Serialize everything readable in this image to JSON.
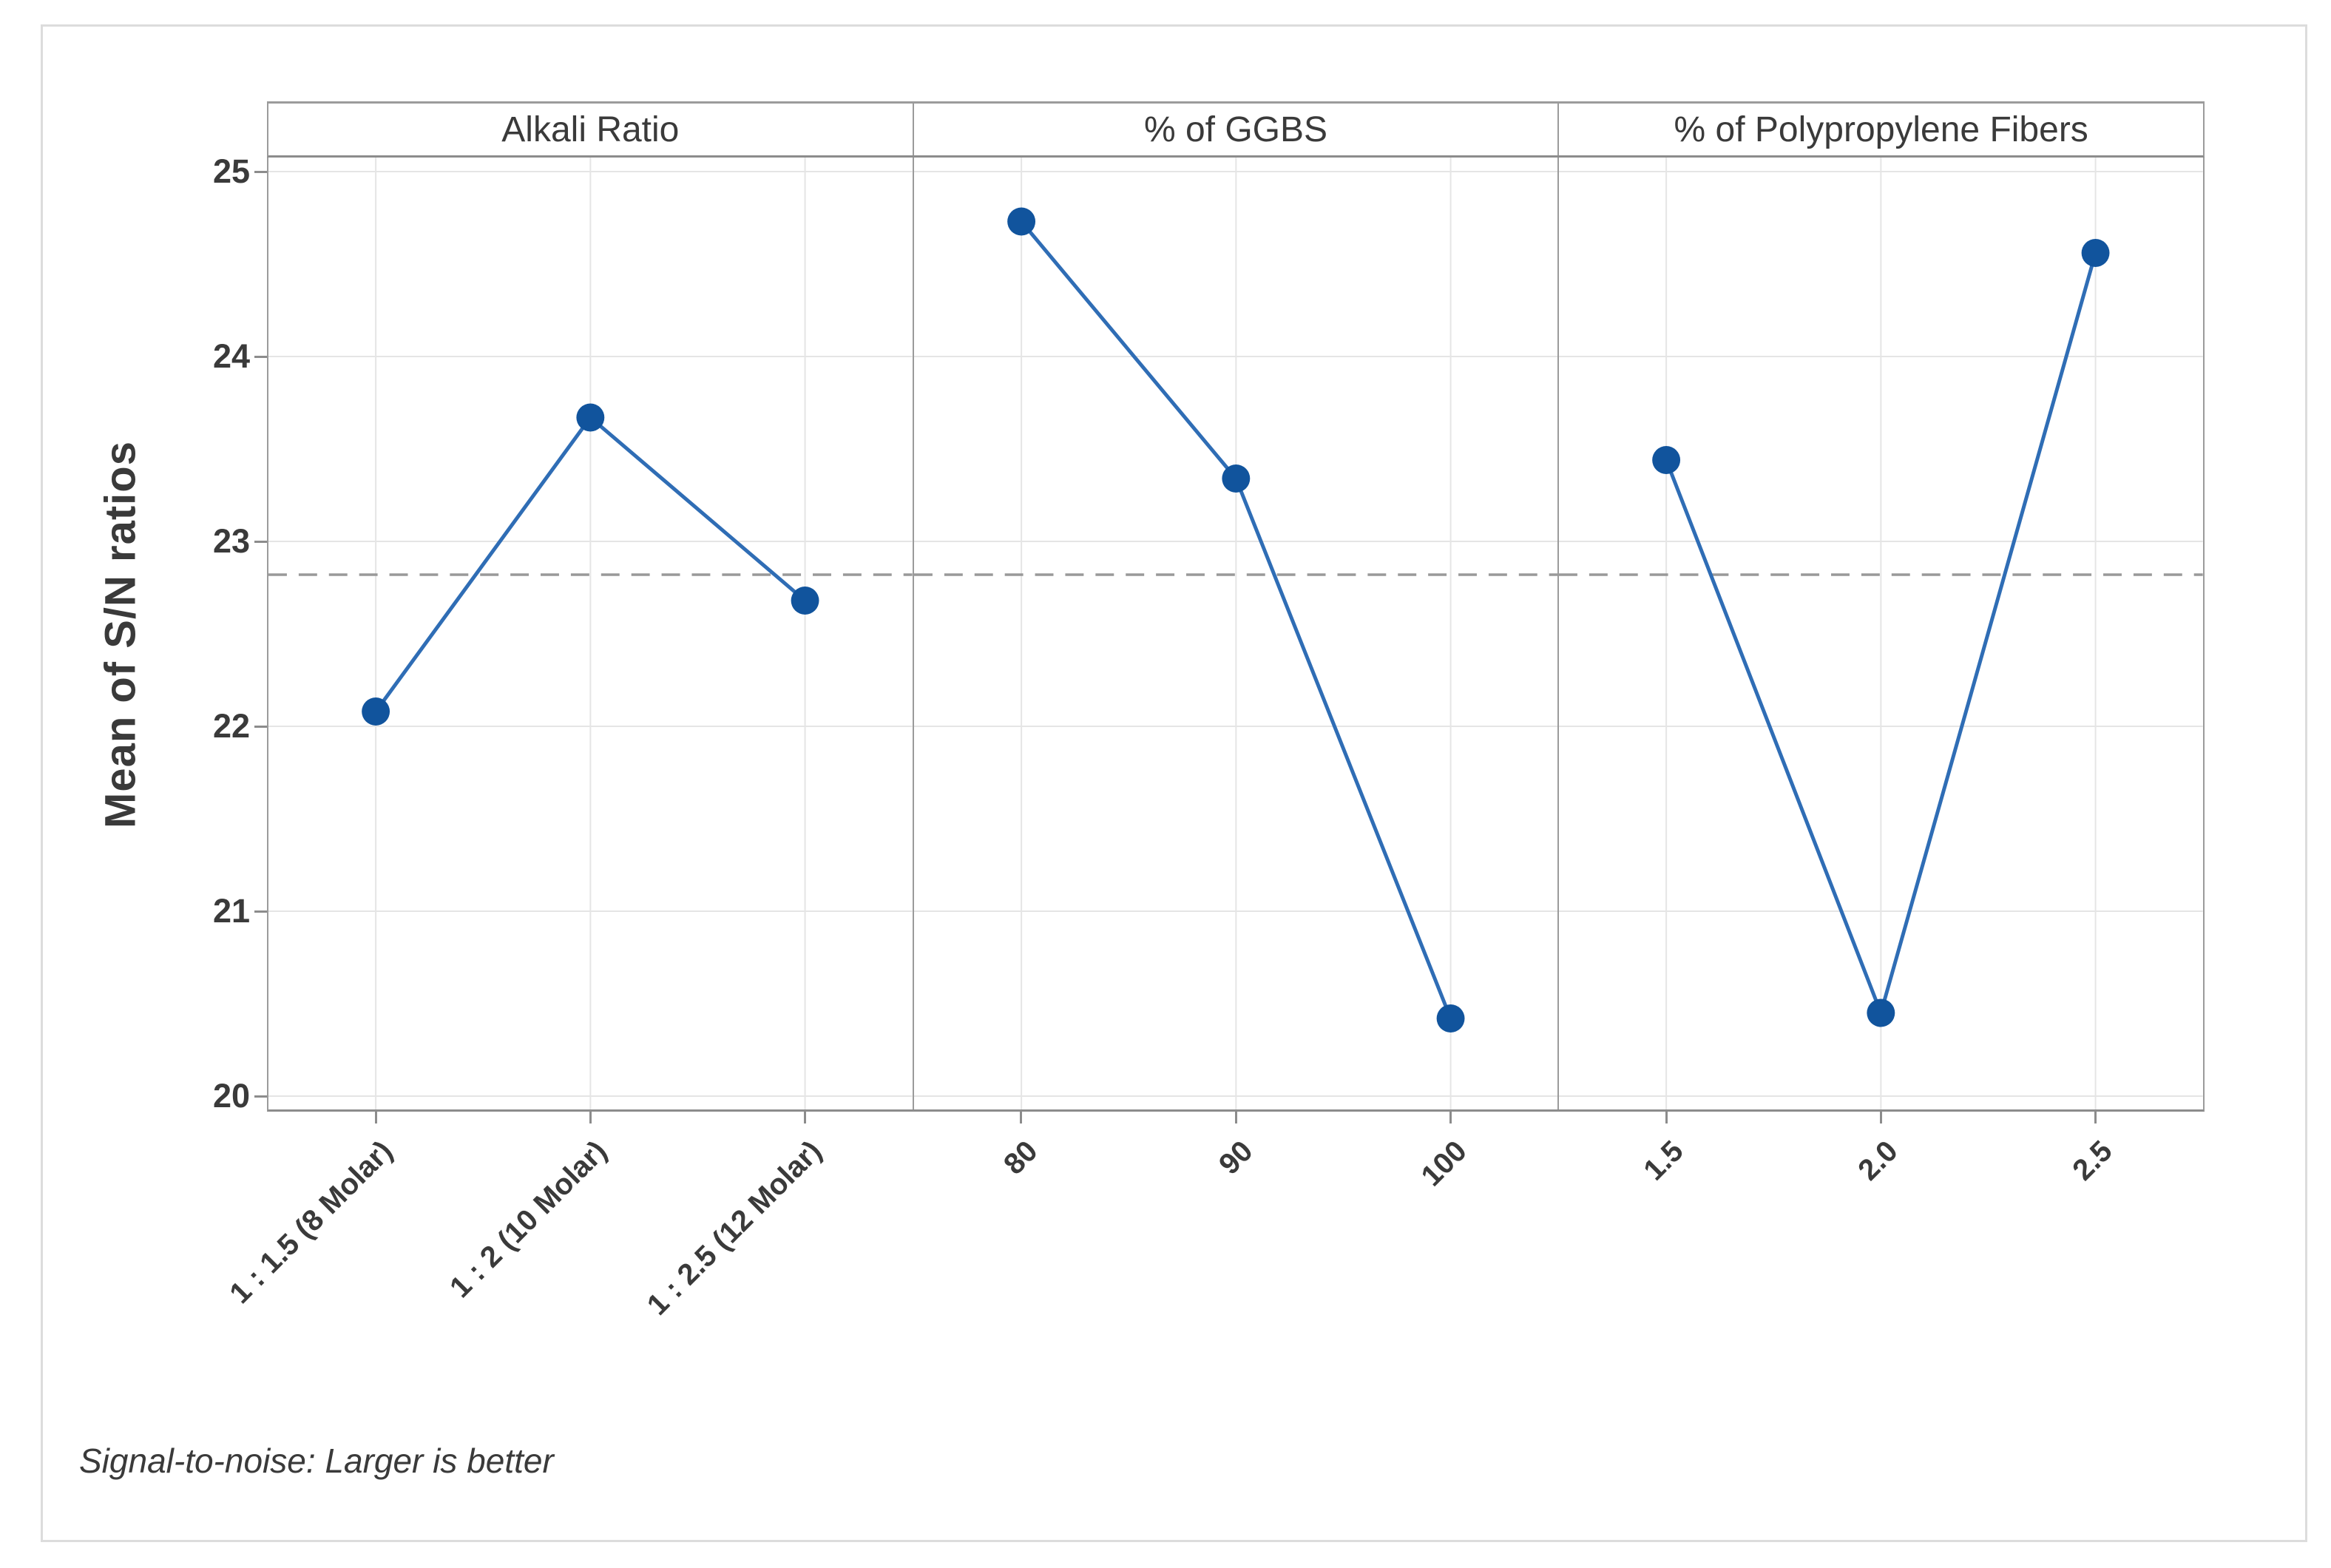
{
  "chart_data": {
    "type": "line",
    "title": "",
    "ylabel": "Mean of S/N ratios",
    "annotation": "Signal-to-noise: Larger is better",
    "y_ticks": [
      25,
      24,
      23,
      22,
      21,
      20
    ],
    "ylim": [
      19.93,
      25.07
    ],
    "grid": true,
    "legend_position": "none",
    "reference_line": 22.82,
    "panels": [
      {
        "title": "Alkali Ratio",
        "categories": [
          "1 : 1.5 (8 Molar)",
          "1 : 2 (10 Molar)",
          "1 : 2.5 (12 Molar)"
        ],
        "values": [
          22.08,
          23.67,
          22.68
        ]
      },
      {
        "title": "% of GGBS",
        "categories": [
          "80",
          "90",
          "100"
        ],
        "values": [
          24.73,
          23.34,
          20.42
        ]
      },
      {
        "title": "% of Polypropylene Fibers",
        "categories": [
          "1.5",
          "2.0",
          "2.5"
        ],
        "values": [
          23.44,
          20.45,
          24.56
        ]
      }
    ]
  },
  "colors": {
    "text": "#3a3a3a",
    "panel_border": "#9b9b9b",
    "tick": "#8c8c8c",
    "gridline": "#e5e5e5",
    "reference_dash": "#999999",
    "series_line": "#2f6db5",
    "series_marker": "#11549d",
    "figure_frame": "#dcdcdc",
    "background": "#ffffff"
  }
}
